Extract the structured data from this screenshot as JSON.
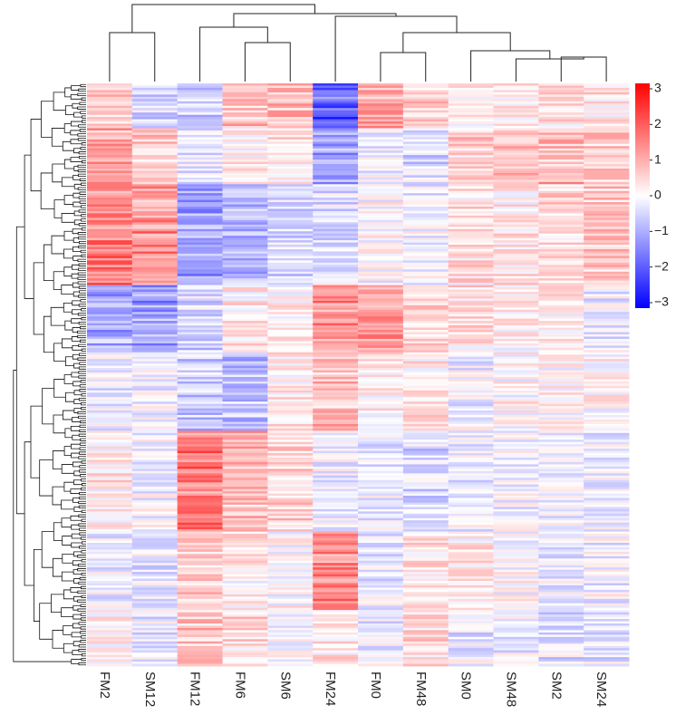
{
  "chart_data": {
    "type": "heatmap",
    "title": "",
    "xlabel": "",
    "ylabel": "",
    "columns": [
      "FM2",
      "SM12",
      "FM12",
      "FM6",
      "SM6",
      "FM24",
      "FM0",
      "FM48",
      "SM0",
      "SM48",
      "SM2",
      "SM24"
    ],
    "row_count": 260,
    "colorbar": {
      "min": -3,
      "max": 3,
      "ticks": [
        "3",
        "2",
        "1",
        "0",
        "−1",
        "−2",
        "−3"
      ],
      "tick_values": [
        3,
        2,
        1,
        0,
        -1,
        -2,
        -3
      ],
      "low_color": "#0000ff",
      "mid_color": "#ffffff",
      "high_color": "#ff0000"
    },
    "column_dendrogram": true,
    "row_dendrogram": true,
    "row_blocks": [
      {
        "rows": [
          0,
          20
        ],
        "values": [
          0.8,
          -0.6,
          -0.8,
          0.8,
          0.9,
          -2.2,
          1.2,
          0.6,
          0.3,
          0.3,
          0.5,
          0.3
        ]
      },
      {
        "rows": [
          20,
          45
        ],
        "values": [
          1.2,
          0.6,
          -0.3,
          0.2,
          0.4,
          -1.2,
          -0.2,
          -0.5,
          0.6,
          0.8,
          1.0,
          0.8
        ]
      },
      {
        "rows": [
          45,
          90
        ],
        "values": [
          1.8,
          1.5,
          -1.2,
          -0.9,
          -0.5,
          -0.4,
          0.0,
          -0.2,
          0.4,
          0.3,
          0.5,
          0.8
        ]
      },
      {
        "rows": [
          90,
          120
        ],
        "values": [
          -1.1,
          -1.3,
          -0.5,
          0.3,
          0.2,
          1.3,
          1.2,
          0.5,
          0.4,
          0.2,
          0.2,
          -0.2
        ]
      },
      {
        "rows": [
          120,
          155
        ],
        "values": [
          -0.3,
          -0.2,
          -0.7,
          -0.9,
          0.3,
          0.9,
          0.2,
          0.3,
          -0.2,
          0.1,
          0.2,
          0.1
        ]
      },
      {
        "rows": [
          155,
          200
        ],
        "values": [
          0.3,
          -0.1,
          1.8,
          1.0,
          0.6,
          -0.2,
          -0.3,
          -0.5,
          -0.2,
          -0.1,
          -0.2,
          -0.2
        ]
      },
      {
        "rows": [
          200,
          235
        ],
        "values": [
          -0.2,
          -0.3,
          0.6,
          0.3,
          0.1,
          1.6,
          -0.3,
          0.4,
          0.3,
          0.0,
          -0.3,
          -0.2
        ]
      },
      {
        "rows": [
          235,
          260
        ],
        "values": [
          0.2,
          -0.3,
          0.7,
          0.5,
          -0.2,
          0.3,
          -0.3,
          0.5,
          -0.3,
          -0.2,
          -0.4,
          -0.3
        ]
      }
    ]
  }
}
